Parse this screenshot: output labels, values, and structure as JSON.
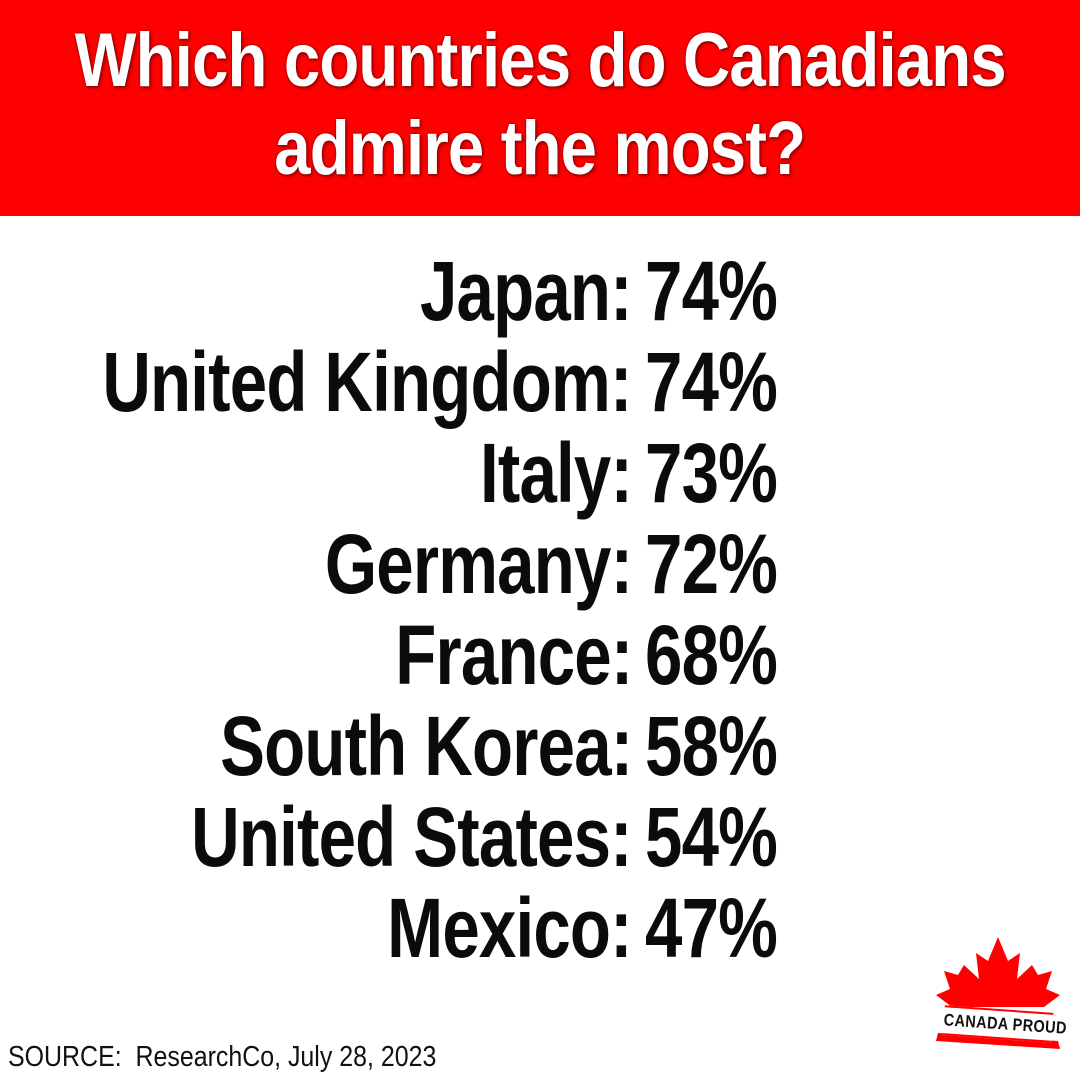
{
  "header": {
    "title_line1": "Which countries do Canadians",
    "title_line2": "admire the most?"
  },
  "rows": [
    {
      "country": "Japan:",
      "percent": "74%"
    },
    {
      "country": "United Kingdom:",
      "percent": "74%"
    },
    {
      "country": "Italy:",
      "percent": "73%"
    },
    {
      "country": "Germany:",
      "percent": "72%"
    },
    {
      "country": "France:",
      "percent": "68%"
    },
    {
      "country": "South Korea:",
      "percent": "58%"
    },
    {
      "country": "United States:",
      "percent": "54%"
    },
    {
      "country": "Mexico:",
      "percent": "47%"
    }
  ],
  "source": "SOURCE:  ResearchCo, July 28, 2023",
  "logo": {
    "text": "CANADA PROUD",
    "icon": "maple-leaf-icon",
    "color": "#ff0000"
  },
  "colors": {
    "header_bg": "#ff0000",
    "header_text": "#ffffff",
    "body_text": "#0b0b0b",
    "page_bg": "#ffffff"
  }
}
